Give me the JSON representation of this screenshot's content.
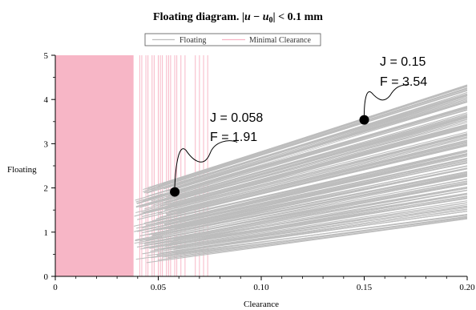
{
  "chart_data": {
    "type": "line",
    "title": "Floating diagram.",
    "title_math": {
      "abs_open": "|",
      "var_u": "u",
      "minus": " − ",
      "var_u0": "u",
      "sub0": "0",
      "abs_close": "|",
      "rest": " < 0.1 mm"
    },
    "xlabel": "Clearance",
    "ylabel": "Floating",
    "xlim": [
      0,
      0.2
    ],
    "ylim": [
      0,
      5
    ],
    "x_ticks": [
      {
        "value": 0,
        "label": "0"
      },
      {
        "value": 0.05,
        "label": "0.05"
      },
      {
        "value": 0.1,
        "label": "0.10"
      },
      {
        "value": 0.15,
        "label": "0.15"
      },
      {
        "value": 0.2,
        "label": "0.20"
      }
    ],
    "y_ticks": [
      {
        "value": 0,
        "label": "0"
      },
      {
        "value": 1,
        "label": "1"
      },
      {
        "value": 2,
        "label": "2"
      },
      {
        "value": 3,
        "label": "3"
      },
      {
        "value": 4,
        "label": "4"
      },
      {
        "value": 5,
        "label": "5"
      }
    ],
    "grid": false,
    "legend": {
      "placement": "top-center",
      "entries": [
        {
          "name": "Floating",
          "color": "#bdbdbd"
        },
        {
          "name": "Minimal Clearance",
          "color": "#f7b6c6"
        }
      ]
    },
    "series": [
      {
        "name": "Floating",
        "color": "#bdbdbd",
        "x_range": [
          0.038,
          0.2
        ],
        "envelope_at_x_start": [
          0.3,
          1.9
        ],
        "envelope_at_x_end": [
          1.25,
          4.35
        ]
      },
      {
        "name": "Minimal Clearance",
        "color": "#f7b6c6",
        "x_range": [
          0,
          0.038
        ],
        "vertical_lines_at_x": [
          0.041,
          0.042,
          0.044,
          0.045,
          0.047,
          0.048,
          0.05,
          0.051,
          0.052,
          0.054,
          0.055,
          0.056,
          0.058,
          0.059,
          0.061,
          0.063,
          0.068,
          0.07,
          0.072,
          0.074
        ]
      }
    ],
    "annotations": [
      {
        "x": 0.058,
        "y": 1.91,
        "line1": "J = 0.058",
        "line2": "F = 1.91"
      },
      {
        "x": 0.15,
        "y": 3.54,
        "line1": "J = 0.15",
        "line2": "F = 3.54"
      }
    ],
    "colors": {
      "floating": "#bdbdbd",
      "minimal_clearance": "#f7b6c6",
      "marker": "#000000",
      "axis": "#000000"
    }
  }
}
